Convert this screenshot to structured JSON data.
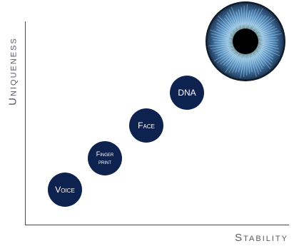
{
  "axes": {
    "y_label": "Uniqueness",
    "x_label": "Stability"
  },
  "bubbles": [
    {
      "label": "Voice"
    },
    {
      "label": "Finger print"
    },
    {
      "label": "Face"
    },
    {
      "label": "DNA"
    }
  ],
  "image": {
    "subject": "iris-eye-closeup",
    "colors": {
      "bubble_fill": "#0e2250",
      "iris": "#6aa7d8",
      "pupil": "#000000"
    }
  }
}
